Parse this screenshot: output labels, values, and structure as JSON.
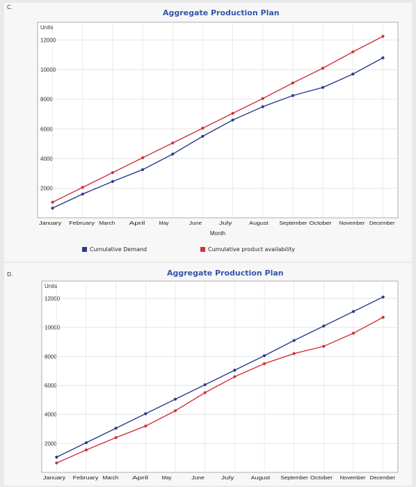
{
  "chart_data": [
    {
      "id": "C",
      "type": "line",
      "option_label": "C.",
      "title": "Aggregate Production Plan",
      "xlabel": "Month",
      "ylabel": "Units",
      "categories": [
        "January",
        "February",
        "March",
        "April",
        "May",
        "June",
        "July",
        "August",
        "September",
        "October",
        "November",
        "December"
      ],
      "yticks": [
        2000,
        4000,
        6000,
        8000,
        10000,
        12000
      ],
      "ylim": [
        0,
        13200
      ],
      "grid": true,
      "legend_position": "bottom",
      "series": [
        {
          "name": "Cumulative Demand",
          "color": "#2a3a8c",
          "values": [
            650,
            1600,
            2450,
            3250,
            4300,
            5500,
            6600,
            7500,
            8250,
            8800,
            9700,
            10800
          ]
        },
        {
          "name": "Cumulative product availability",
          "color": "#d0303a",
          "values": [
            1050,
            2050,
            3050,
            4050,
            5050,
            6050,
            7050,
            8050,
            9100,
            10100,
            11200,
            12250
          ]
        }
      ]
    },
    {
      "id": "D",
      "type": "line",
      "option_label": "D.",
      "title": "Aggregate Production Plan",
      "xlabel": "",
      "ylabel": "Units",
      "categories": [
        "January",
        "February",
        "March",
        "April",
        "May",
        "June",
        "July",
        "August",
        "September",
        "October",
        "November",
        "December"
      ],
      "yticks": [
        2000,
        4000,
        6000,
        8000,
        10000,
        12000
      ],
      "ylim": [
        0,
        13200
      ],
      "grid": true,
      "legend_position": "bottom",
      "series": [
        {
          "name": "",
          "color": "#2a3a8c",
          "values": [
            1050,
            2050,
            3050,
            4050,
            5050,
            6050,
            7050,
            8050,
            9100,
            10100,
            11100,
            12100
          ]
        },
        {
          "name": "",
          "color": "#d0303a",
          "values": [
            650,
            1550,
            2400,
            3200,
            4250,
            5500,
            6600,
            7500,
            8200,
            8700,
            9600,
            10700
          ]
        }
      ]
    }
  ]
}
